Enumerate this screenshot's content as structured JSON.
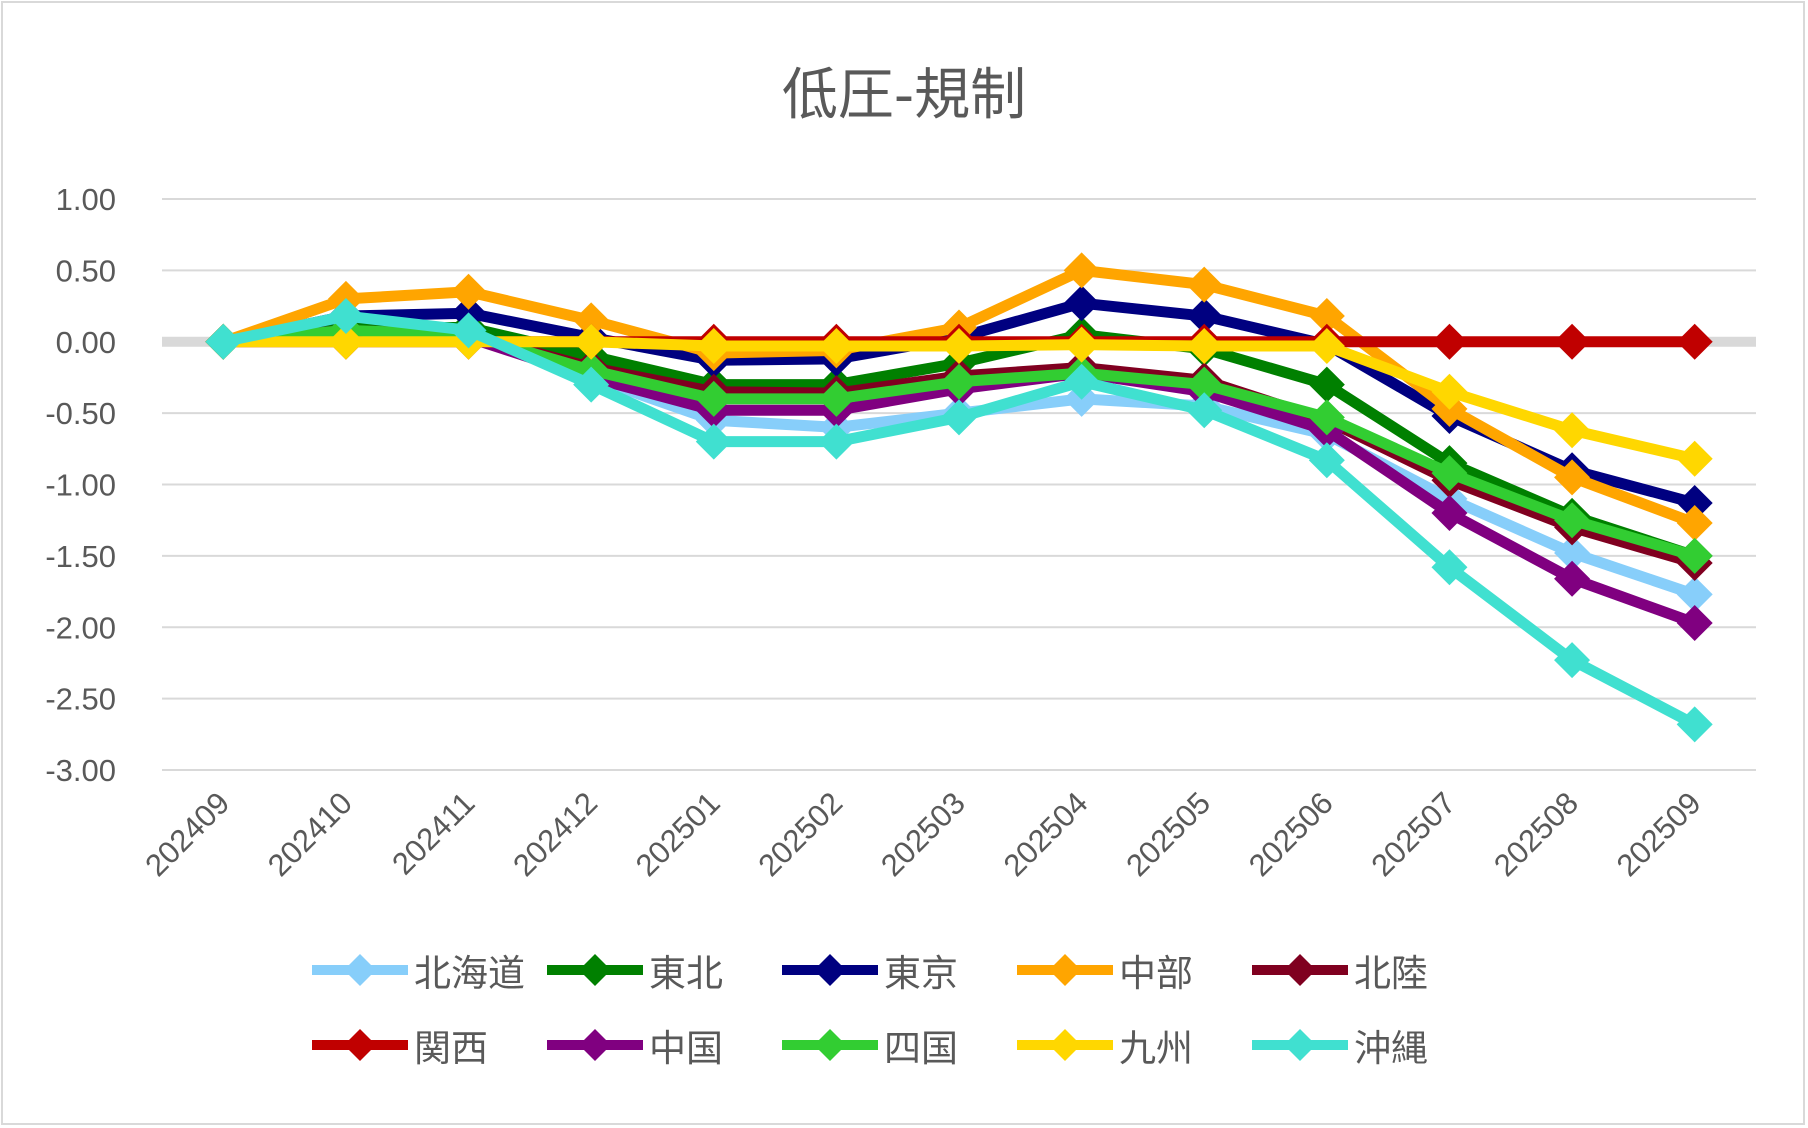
{
  "chart_data": {
    "type": "line",
    "title": "低圧-規制",
    "xlabel": "",
    "ylabel": "",
    "ylim": [
      -3.0,
      1.0
    ],
    "yticks": [
      "1.00",
      "0.50",
      "0.00",
      "-0.50",
      "-1.00",
      "-1.50",
      "-2.00",
      "-2.50",
      "-3.00"
    ],
    "ytick_values": [
      1.0,
      0.5,
      0.0,
      -0.5,
      -1.0,
      -1.5,
      -2.0,
      -2.5,
      -3.0
    ],
    "grid": true,
    "legend_position": "bottom",
    "categories": [
      "202409",
      "202410",
      "202411",
      "202412",
      "202501",
      "202502",
      "202503",
      "202504",
      "202505",
      "202506",
      "202507",
      "202508",
      "202509"
    ],
    "series": [
      {
        "name": "北海道",
        "color": "#87cefa",
        "values": [
          0,
          0.12,
          0.05,
          -0.25,
          -0.55,
          -0.6,
          -0.5,
          -0.4,
          -0.45,
          -0.65,
          -1.1,
          -1.48,
          -1.77
        ]
      },
      {
        "name": "東北",
        "color": "#008000",
        "values": [
          0,
          0.1,
          0.1,
          -0.1,
          -0.3,
          -0.3,
          -0.15,
          0.05,
          -0.05,
          -0.3,
          -0.85,
          -1.22,
          -1.5
        ]
      },
      {
        "name": "東京",
        "color": "#000080",
        "values": [
          0,
          0.18,
          0.2,
          0.03,
          -0.13,
          -0.12,
          0.03,
          0.27,
          0.18,
          -0.02,
          -0.52,
          -0.9,
          -1.13
        ]
      },
      {
        "name": "中部",
        "color": "#ffa500",
        "values": [
          0,
          0.3,
          0.35,
          0.15,
          -0.08,
          -0.06,
          0.1,
          0.5,
          0.4,
          0.18,
          -0.47,
          -0.95,
          -1.27
        ]
      },
      {
        "name": "北陸",
        "color": "#800020",
        "values": [
          0,
          0.08,
          0.05,
          -0.18,
          -0.35,
          -0.36,
          -0.24,
          -0.18,
          -0.27,
          -0.55,
          -0.97,
          -1.3,
          -1.55
        ]
      },
      {
        "name": "関西",
        "color": "#c00000",
        "values": [
          0,
          0,
          0,
          0,
          0,
          0,
          0,
          0,
          0,
          0,
          0,
          0,
          0
        ]
      },
      {
        "name": "中国",
        "color": "#800080",
        "values": [
          0,
          0.08,
          0.03,
          -0.25,
          -0.48,
          -0.48,
          -0.33,
          -0.22,
          -0.35,
          -0.62,
          -1.2,
          -1.66,
          -1.97
        ]
      },
      {
        "name": "四国",
        "color": "#32cd32",
        "values": [
          0,
          0.08,
          0.05,
          -0.2,
          -0.4,
          -0.4,
          -0.28,
          -0.22,
          -0.3,
          -0.53,
          -0.92,
          -1.25,
          -1.5
        ]
      },
      {
        "name": "九州",
        "color": "#ffd700",
        "values": [
          0,
          0,
          0,
          0,
          -0.03,
          -0.03,
          -0.03,
          -0.02,
          -0.03,
          -0.03,
          -0.35,
          -0.62,
          -0.82
        ]
      },
      {
        "name": "沖縄",
        "color": "#40e0d0",
        "values": [
          0,
          0.18,
          0.08,
          -0.3,
          -0.7,
          -0.7,
          -0.53,
          -0.28,
          -0.48,
          -0.83,
          -1.58,
          -2.23,
          -2.68
        ]
      }
    ]
  }
}
